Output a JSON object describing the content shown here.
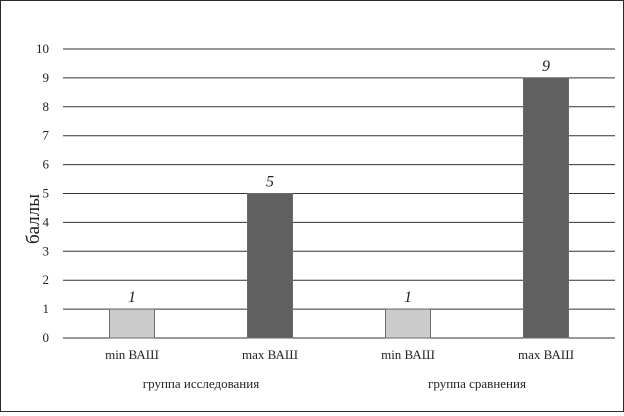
{
  "chart_data": {
    "type": "bar",
    "ylabel": "баллы",
    "ylim": [
      0,
      10
    ],
    "yticks": [
      0,
      1,
      2,
      3,
      4,
      5,
      6,
      7,
      8,
      9,
      10
    ],
    "grid": true,
    "categories": [
      "min ВАШ",
      "max ВАШ",
      "min ВАШ",
      "max ВАШ"
    ],
    "groups": [
      {
        "label": "группа исследования",
        "categories": [
          "min ВАШ",
          "max ВАШ"
        ]
      },
      {
        "label": "группа сравнения",
        "categories": [
          "min ВАШ",
          "max ВАШ"
        ]
      }
    ],
    "values": [
      1,
      5,
      1,
      9
    ],
    "data_labels": [
      "1",
      "5",
      "1",
      "9"
    ],
    "colors": {
      "min": "#cccccc",
      "max": "#606060",
      "grid": "#333333",
      "border": "#2b2b2b"
    }
  }
}
